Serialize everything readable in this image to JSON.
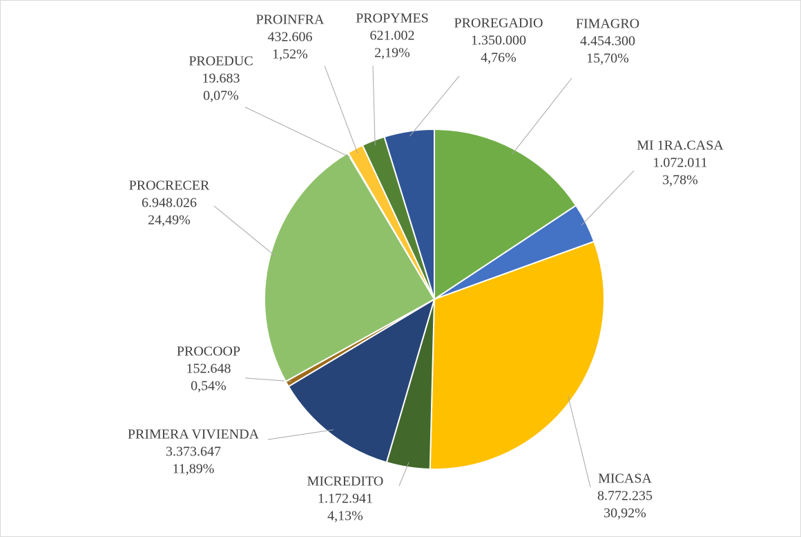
{
  "chart_data": {
    "type": "pie",
    "categories": [
      "FIMAGRO",
      "MI 1RA.CASA",
      "MICASA",
      "MICREDITO",
      "PRIMERA VIVIENDA",
      "PROCOOP",
      "PROCRECER",
      "PROEDUC",
      "PROINFRA",
      "PROPYMES",
      "PROREGADIO"
    ],
    "values": [
      4454300,
      1072011,
      8772235,
      1172941,
      3373647,
      152648,
      6948026,
      19683,
      432606,
      621002,
      1350000
    ],
    "value_labels": [
      "4.454.300",
      "1.072.011",
      "8.772.235",
      "1.172.941",
      "3.373.647",
      "152.648",
      "6.948.026",
      "19.683",
      "432.606",
      "621.002",
      "1.350.000"
    ],
    "percentages": [
      15.7,
      3.78,
      30.92,
      4.13,
      11.89,
      0.54,
      24.49,
      0.07,
      1.52,
      2.19,
      4.76
    ],
    "percentage_labels": [
      "15,70%",
      "3,78%",
      "30,92%",
      "4,13%",
      "11,89%",
      "0,54%",
      "24,49%",
      "0,07%",
      "1,52%",
      "2,19%",
      "4,76%"
    ],
    "colors": [
      "#70ad47",
      "#4472c4",
      "#ffc000",
      "#43682b",
      "#264478",
      "#9e6b1a",
      "#8fc16a",
      "#a5a5a5",
      "#ffc533",
      "#548235",
      "#2f5597"
    ]
  }
}
